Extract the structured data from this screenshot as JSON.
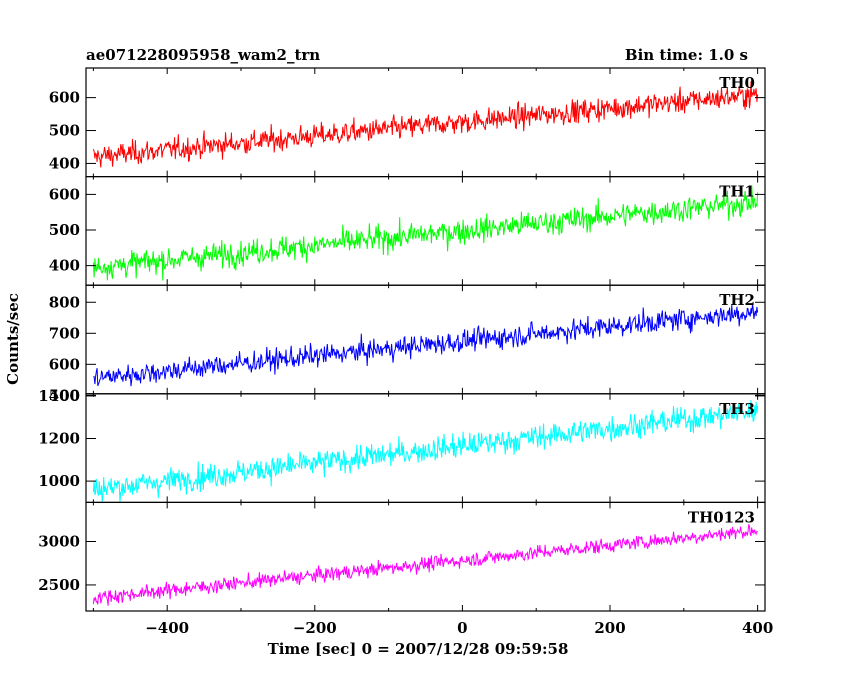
{
  "chart_data": {
    "type": "line",
    "title_left": "ae071228095958_wam2_trn",
    "title_right": "Bin time: 1.0 s",
    "xlabel": "Time [sec] 0 = 2007/12/28 09:59:58",
    "ylabel": "Counts/sec",
    "xlim": [
      -510,
      410
    ],
    "x_ticks": [
      -400,
      -200,
      0,
      200,
      400
    ],
    "x_tick_labels": [
      "−400",
      "−200",
      "0",
      "200",
      "400"
    ],
    "x_range": [
      -500,
      400
    ],
    "grid": false,
    "panels": [
      {
        "name": "TH0",
        "color": "#ff0000",
        "ylim": [
          360,
          690
        ],
        "y_ticks": [
          400,
          500,
          600
        ],
        "trend": {
          "start": 420,
          "end": 610
        },
        "noise_amplitude": 30
      },
      {
        "name": "TH1",
        "color": "#00ff00",
        "ylim": [
          345,
          650
        ],
        "y_ticks": [
          400,
          500,
          600
        ],
        "trend": {
          "start": 395,
          "end": 580
        },
        "noise_amplitude": 30
      },
      {
        "name": "TH2",
        "color": "#0000ff",
        "ylim": [
          505,
          855
        ],
        "y_ticks": [
          500,
          600,
          700,
          800
        ],
        "trend": {
          "start": 555,
          "end": 770
        },
        "noise_amplitude": 30
      },
      {
        "name": "TH3",
        "color": "#00ffff",
        "ylim": [
          900,
          1410
        ],
        "y_ticks": [
          1000,
          1200,
          1400
        ],
        "trend": {
          "start": 960,
          "end": 1330
        },
        "noise_amplitude": 50
      },
      {
        "name": "TH0123",
        "color": "#ff00ff",
        "ylim": [
          2200,
          3450
        ],
        "y_ticks": [
          2500,
          3000
        ],
        "trend": {
          "start": 2350,
          "end": 3130
        },
        "noise_amplitude": 70
      }
    ]
  }
}
